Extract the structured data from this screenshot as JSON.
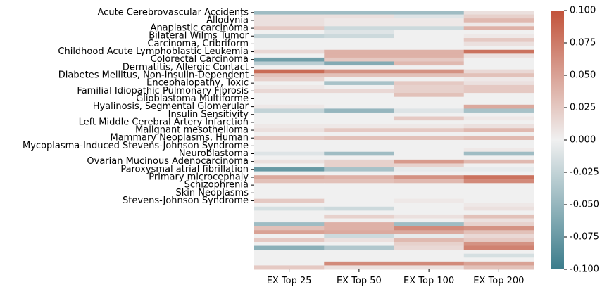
{
  "chart_data": {
    "type": "heatmap",
    "title": "",
    "xlabel": "",
    "ylabel": "",
    "columns": [
      "EX Top 25",
      "EX Top 50",
      "EX Top 100",
      "EX Top 200"
    ],
    "row_count": 66,
    "y_tick_labels": [
      {
        "row": 0,
        "label": "Acute Cerebrovascular Accidents"
      },
      {
        "row": 2,
        "label": "Allodynia"
      },
      {
        "row": 4,
        "label": "Anaplastic carcinoma"
      },
      {
        "row": 6,
        "label": "Bilateral Wilms Tumor"
      },
      {
        "row": 8,
        "label": "Carcinoma, Cribriform"
      },
      {
        "row": 10,
        "label": "Childhood Acute Lymphoblastic Leukemia"
      },
      {
        "row": 12,
        "label": "Colorectal Carcinoma"
      },
      {
        "row": 14,
        "label": "Dermatitis, Allergic Contact"
      },
      {
        "row": 16,
        "label": "Diabetes Mellitus, Non-Insulin-Dependent"
      },
      {
        "row": 18,
        "label": "Encephalopathy, Toxic"
      },
      {
        "row": 20,
        "label": "Familial Idiopathic Pulmonary Fibrosis"
      },
      {
        "row": 22,
        "label": "Glioblastoma Multiforme"
      },
      {
        "row": 24,
        "label": "Hyalinosis, Segmental Glomerular"
      },
      {
        "row": 26,
        "label": "Insulin Sensitivity"
      },
      {
        "row": 28,
        "label": "Left Middle Cerebral Artery Infarction"
      },
      {
        "row": 30,
        "label": "Malignant mesothelioma"
      },
      {
        "row": 32,
        "label": "Mammary Neoplasms, Human"
      },
      {
        "row": 34,
        "label": "Mycoplasma-Induced Stevens-Johnson Syndrome"
      },
      {
        "row": 36,
        "label": "Neuroblastoma"
      },
      {
        "row": 38,
        "label": "Ovarian Mucinous Adenocarcinoma"
      },
      {
        "row": 40,
        "label": "Paroxysmal atrial fibrillation"
      },
      {
        "row": 42,
        "label": "Primary microcephaly"
      },
      {
        "row": 44,
        "label": "Schizophrenia"
      },
      {
        "row": 46,
        "label": "Skin Neoplasms"
      },
      {
        "row": 48,
        "label": "Stevens-Johnson Syndrome"
      }
    ],
    "values": [
      [
        -0.045,
        -0.045,
        -0.045,
        0.01
      ],
      [
        0.01,
        0.01,
        -0.01,
        0.02
      ],
      [
        0.01,
        0.005,
        0.005,
        0.035
      ],
      [
        0.01,
        0.005,
        0.005,
        0.005
      ],
      [
        0.025,
        -0.02,
        -0.02,
        0.04
      ],
      [
        0.0,
        -0.01,
        0.0,
        0.0
      ],
      [
        -0.025,
        -0.02,
        0.0,
        0.005
      ],
      [
        0.0,
        0.0,
        0.0,
        0.025
      ],
      [
        0.0,
        0.0,
        0.0,
        0.01
      ],
      [
        0.0,
        0.0,
        0.0,
        0.0
      ],
      [
        0.015,
        0.04,
        0.04,
        0.08
      ],
      [
        0.0,
        0.04,
        0.04,
        0.01
      ],
      [
        -0.07,
        0.025,
        0.025,
        0.0
      ],
      [
        -0.03,
        -0.06,
        0.035,
        0.0
      ],
      [
        0.0,
        0.0,
        0.0,
        0.0
      ],
      [
        0.085,
        0.06,
        0.06,
        0.015
      ],
      [
        0.03,
        0.03,
        0.03,
        0.03
      ],
      [
        0.02,
        0.0,
        0.0,
        0.005
      ],
      [
        0.0,
        -0.04,
        0.025,
        0.01
      ],
      [
        0.005,
        0.0,
        0.02,
        0.025
      ],
      [
        0.015,
        0.015,
        0.02,
        0.025
      ],
      [
        0.0,
        0.0,
        0.03,
        0.0
      ],
      [
        0.0,
        0.0,
        0.0,
        0.0
      ],
      [
        0.0,
        0.0,
        0.0,
        0.0
      ],
      [
        0.005,
        0.0,
        0.0,
        0.045
      ],
      [
        -0.025,
        -0.05,
        -0.01,
        -0.04
      ],
      [
        0.0,
        0.0,
        0.0,
        0.0
      ],
      [
        0.0,
        0.0,
        0.025,
        0.005
      ],
      [
        0.0,
        0.0,
        0.0,
        0.0
      ],
      [
        0.005,
        0.005,
        0.005,
        0.01
      ],
      [
        0.01,
        0.025,
        0.025,
        0.035
      ],
      [
        0.0,
        0.0,
        0.0,
        0.0
      ],
      [
        0.025,
        0.03,
        0.03,
        0.035
      ],
      [
        0.0,
        0.0,
        0.0,
        0.0
      ],
      [
        0.0,
        0.0,
        0.0,
        0.0
      ],
      [
        0.0,
        0.0,
        0.0,
        0.005
      ],
      [
        -0.01,
        -0.045,
        0.0,
        -0.045
      ],
      [
        0.0,
        0.0,
        0.0,
        0.0
      ],
      [
        0.01,
        0.02,
        0.055,
        0.035
      ],
      [
        0.0,
        0.02,
        0.02,
        0.0
      ],
      [
        -0.075,
        -0.04,
        -0.005,
        -0.005
      ],
      [
        0.0,
        0.0,
        0.0,
        0.0
      ],
      [
        0.045,
        0.04,
        0.06,
        0.08
      ],
      [
        0.03,
        0.03,
        0.035,
        0.065
      ],
      [
        0.0,
        0.0,
        0.0,
        0.0
      ],
      [
        0.0,
        0.0,
        0.0,
        0.0
      ],
      [
        0.0,
        0.0,
        0.0,
        0.0
      ],
      [
        0.0,
        0.0,
        0.0,
        0.0
      ],
      [
        0.025,
        0.0,
        0.005,
        0.0
      ],
      [
        0.0,
        0.0,
        0.0,
        0.005
      ],
      [
        -0.015,
        -0.02,
        0.0,
        0.01
      ],
      [
        0.0,
        0.0,
        0.0,
        0.0
      ],
      [
        0.0,
        0.02,
        0.01,
        0.03
      ],
      [
        0.0,
        0.0,
        0.0,
        0.01
      ],
      [
        -0.045,
        0.04,
        -0.045,
        0.02
      ],
      [
        0.03,
        0.04,
        0.065,
        0.06
      ],
      [
        0.05,
        0.045,
        0.045,
        0.03
      ],
      [
        0.0,
        -0.02,
        -0.005,
        0.015
      ],
      [
        0.025,
        0.01,
        0.035,
        0.025
      ],
      [
        0.0,
        0.0,
        0.02,
        0.06
      ],
      [
        -0.055,
        -0.035,
        0.015,
        0.07
      ],
      [
        0.0,
        0.0,
        0.0,
        0.0
      ],
      [
        0.0,
        0.0,
        0.0,
        -0.015
      ],
      [
        0.0,
        0.0,
        0.0,
        0.0
      ],
      [
        0.0,
        0.065,
        0.065,
        0.05
      ],
      [
        0.025,
        0.01,
        0.01,
        0.03
      ]
    ],
    "colorbar": {
      "min": -0.1,
      "max": 0.1,
      "ticks": [
        "0.100",
        "0.075",
        "0.050",
        "0.025",
        "0.000",
        "-0.025",
        "-0.050",
        "-0.075",
        "-0.100"
      ],
      "colors": {
        "negative": "#3b7c8b",
        "neutral": "#f0f0f0",
        "positive": "#c2533a"
      }
    },
    "grid": false,
    "legend": "colorbar-right"
  }
}
